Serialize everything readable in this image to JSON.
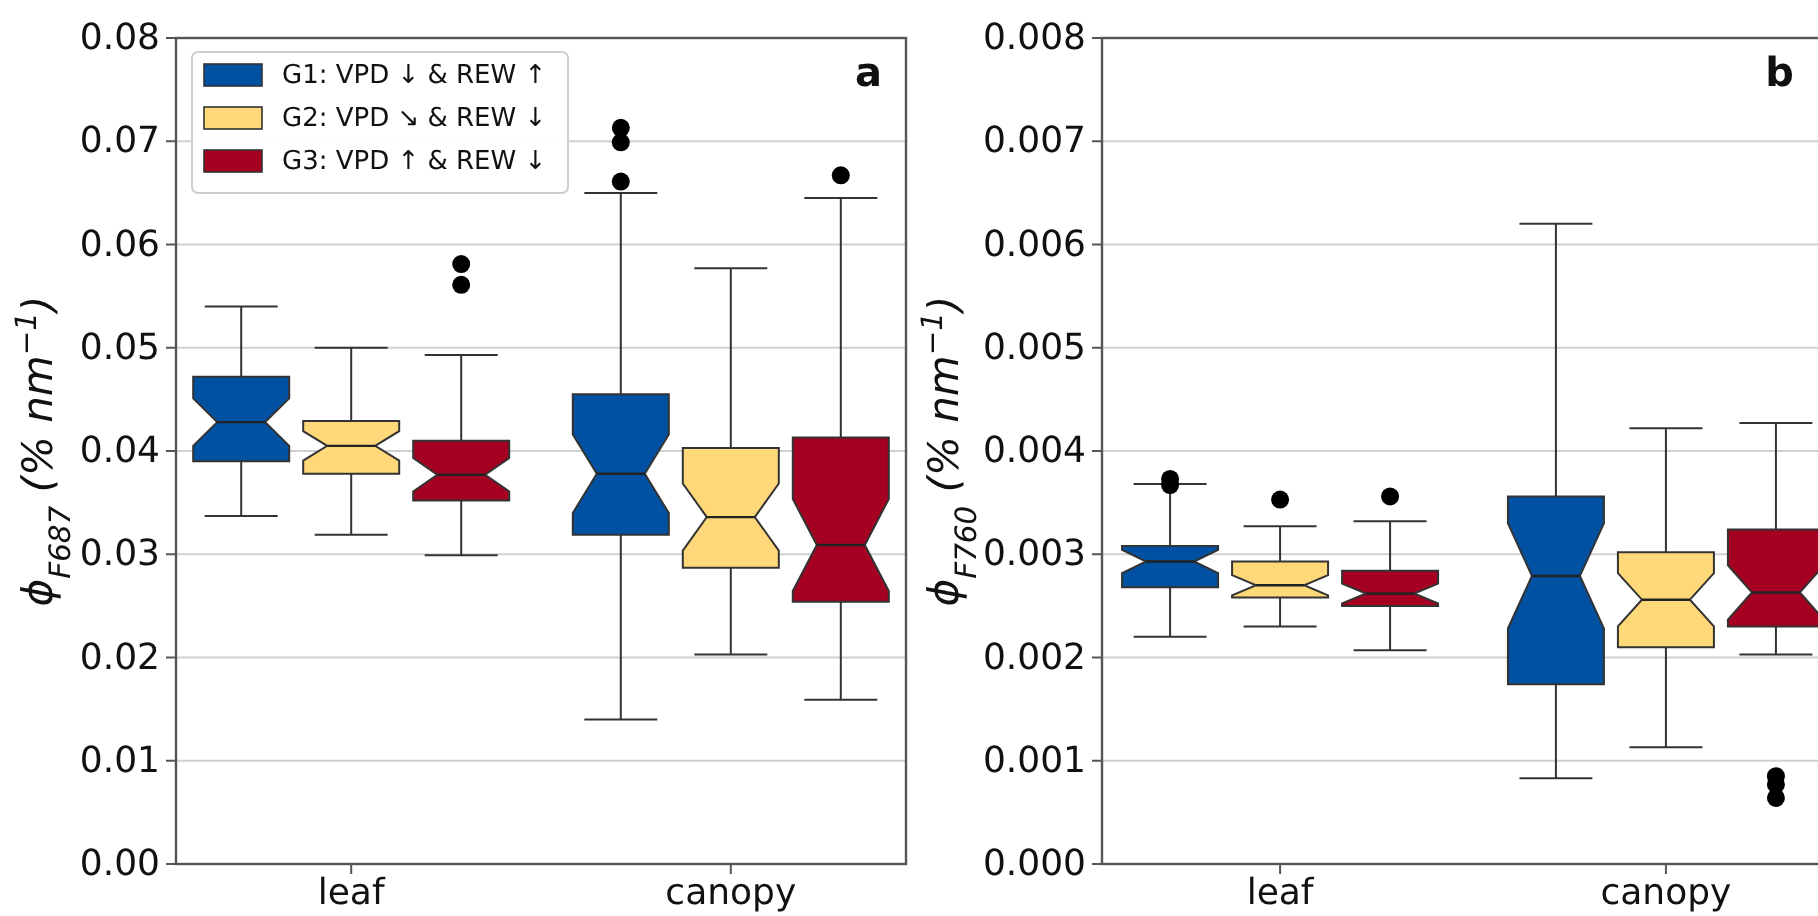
{
  "chart_data": [
    {
      "type": "box",
      "title": "a",
      "ylabel": "ϕ$_{F687}$ (% nm$^{−1}$)",
      "categories": [
        "leaf",
        "canopy"
      ],
      "ylim": [
        0,
        0.08
      ],
      "yticks": [
        {
          "value": 0,
          "label": "0.00"
        },
        {
          "value": 0.01,
          "label": "0.01"
        },
        {
          "value": 0.02,
          "label": "0.02"
        },
        {
          "value": 0.03,
          "label": "0.03"
        },
        {
          "value": 0.04,
          "label": "0.04"
        },
        {
          "value": 0.05,
          "label": "0.05"
        },
        {
          "value": 0.06,
          "label": "0.06"
        },
        {
          "value": 0.07,
          "label": "0.07"
        },
        {
          "value": 0.08,
          "label": "0.08"
        }
      ],
      "grid": "y",
      "legend": "top left",
      "series": [
        {
          "name": "G1: VPD ↓ & REW ↑",
          "color": "#0051a2",
          "boxes": [
            {
              "low": 0.0337,
              "q1": 0.039,
              "median": 0.0428,
              "q3": 0.0472,
              "high": 0.054
            },
            {
              "low": 0.014,
              "q1": 0.0319,
              "median": 0.0378,
              "q3": 0.0455,
              "high": 0.065,
              "outliers": [
                0.0661,
                0.0699,
                0.0713
              ]
            }
          ]
        },
        {
          "name": "G2: VPD ↘ & REW ↓",
          "color": "#ffd87a",
          "boxes": [
            {
              "low": 0.0319,
              "q1": 0.0378,
              "median": 0.0405,
              "q3": 0.0429,
              "high": 0.05
            },
            {
              "low": 0.0203,
              "q1": 0.0287,
              "median": 0.0336,
              "q3": 0.0403,
              "high": 0.0577
            }
          ]
        },
        {
          "name": "G3: VPD ↑ & REW ↓",
          "color": "#a50021",
          "boxes": [
            {
              "low": 0.0299,
              "q1": 0.0352,
              "median": 0.0377,
              "q3": 0.041,
              "high": 0.0493,
              "outliers": [
                0.0561,
                0.0581
              ]
            },
            {
              "low": 0.0159,
              "q1": 0.0254,
              "median": 0.0309,
              "q3": 0.0413,
              "high": 0.0645,
              "outliers": [
                0.0667
              ]
            }
          ]
        }
      ]
    },
    {
      "type": "box",
      "title": "b",
      "ylabel": "ϕ$_{F760}$ (% nm$^{−1}$)",
      "categories": [
        "leaf",
        "canopy"
      ],
      "ylim": [
        0,
        0.008
      ],
      "yticks": [
        {
          "value": 0,
          "label": "0.000"
        },
        {
          "value": 0.001,
          "label": "0.001"
        },
        {
          "value": 0.002,
          "label": "0.002"
        },
        {
          "value": 0.003,
          "label": "0.003"
        },
        {
          "value": 0.004,
          "label": "0.004"
        },
        {
          "value": 0.005,
          "label": "0.005"
        },
        {
          "value": 0.006,
          "label": "0.006"
        },
        {
          "value": 0.007,
          "label": "0.007"
        },
        {
          "value": 0.008,
          "label": "0.008"
        }
      ],
      "grid": "y",
      "series": [
        {
          "color": "#0051a2",
          "boxes": [
            {
              "low": 0.0022,
              "q1": 0.00268,
              "median": 0.00293,
              "q3": 0.00308,
              "high": 0.00368,
              "outliers": [
                0.00367,
                0.00373
              ]
            },
            {
              "low": 0.00083,
              "q1": 0.00174,
              "median": 0.00279,
              "q3": 0.00356,
              "high": 0.0062
            }
          ]
        },
        {
          "color": "#ffd87a",
          "boxes": [
            {
              "low": 0.0023,
              "q1": 0.00258,
              "median": 0.0027,
              "q3": 0.00293,
              "high": 0.00327,
              "outliers": [
                0.00353
              ]
            },
            {
              "low": 0.00113,
              "q1": 0.0021,
              "median": 0.00256,
              "q3": 0.00302,
              "high": 0.00422
            }
          ]
        },
        {
          "color": "#a50021",
          "boxes": [
            {
              "low": 0.00207,
              "q1": 0.0025,
              "median": 0.00262,
              "q3": 0.00284,
              "high": 0.00332,
              "outliers": [
                0.00356
              ]
            },
            {
              "low": 0.00203,
              "q1": 0.0023,
              "median": 0.00263,
              "q3": 0.00324,
              "high": 0.00427,
              "outliers": [
                0.00064,
                0.00077,
                0.00085
              ]
            }
          ]
        }
      ]
    }
  ]
}
